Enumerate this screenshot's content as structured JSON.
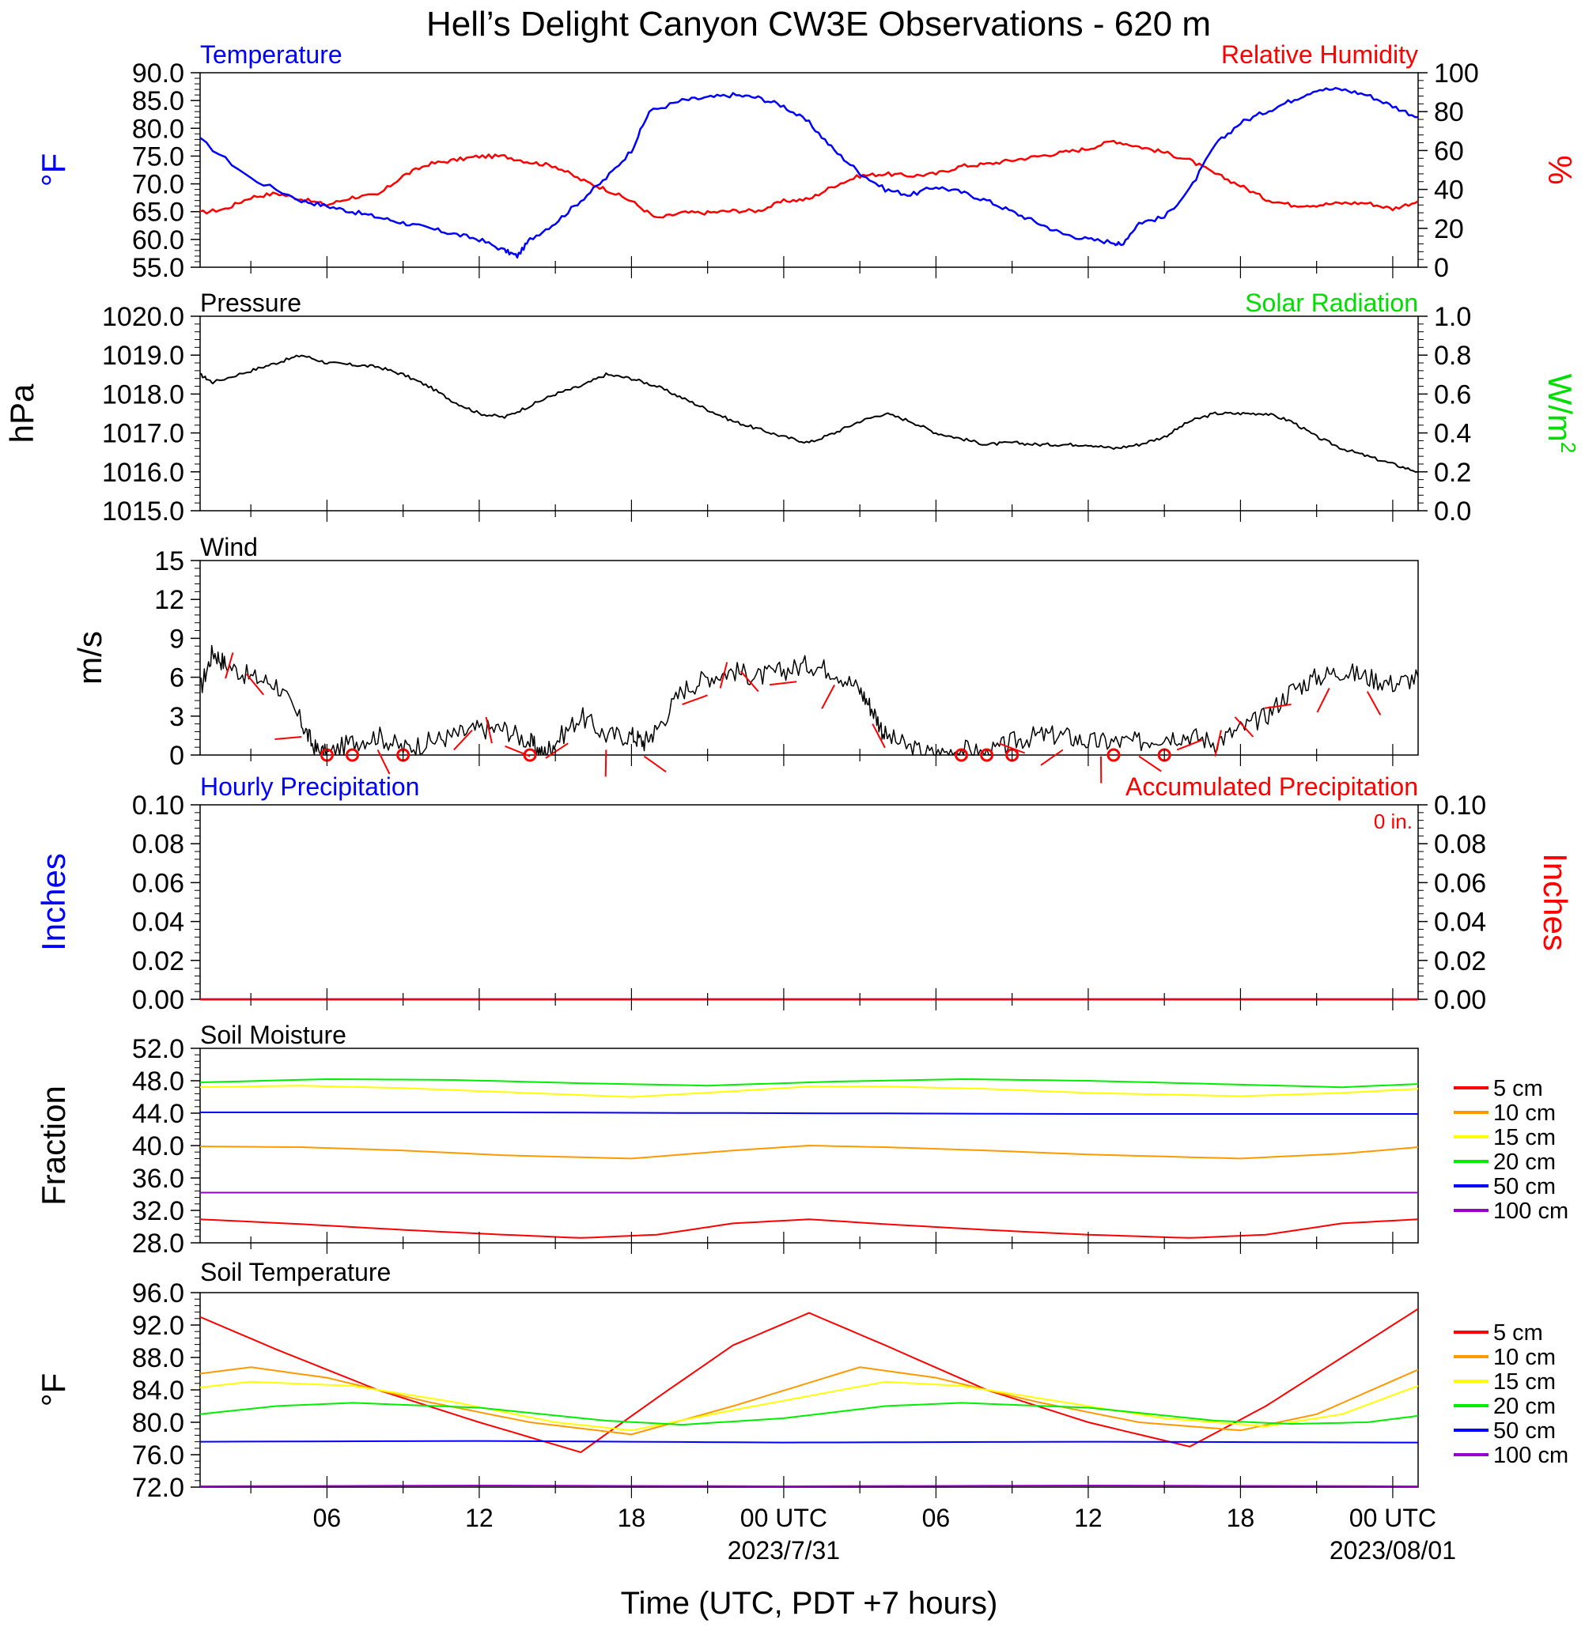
{
  "title": "Hell’s Delight Canyon CW3E Observations - 620 m",
  "xaxis": {
    "ticks": [
      {
        "hour": 6,
        "label": "06"
      },
      {
        "hour": 12,
        "label": "12"
      },
      {
        "hour": 18,
        "label": "18"
      },
      {
        "hour": 24,
        "label": "00 UTC"
      },
      {
        "hour": 30,
        "label": "06"
      },
      {
        "hour": 36,
        "label": "12"
      },
      {
        "hour": 42,
        "label": "18"
      },
      {
        "hour": 48,
        "label": "00 UTC"
      }
    ],
    "dates": [
      {
        "hour": 24,
        "label": "2023/7/31"
      },
      {
        "hour": 48,
        "label": "2023/08/01"
      }
    ],
    "title": "Time (UTC, PDT +7 hours)"
  },
  "colors": {
    "temperature": "#0000ff",
    "humidity": "#ff0000",
    "pressure": "#000000",
    "solar": "#00dd00",
    "5cm": "#ff0000",
    "10cm": "#ff9900",
    "15cm": "#ffff00",
    "20cm": "#00ee00",
    "50cm": "#0000ff",
    "100cm": "#9900cc"
  },
  "panels": {
    "temperature": {
      "left_label": "Temperature",
      "right_label": "Relative Humidity",
      "left_unit": "°F",
      "right_unit": "%",
      "left_ticks": [
        "90.0",
        "85.0",
        "80.0",
        "75.0",
        "70.0",
        "65.0",
        "60.0",
        "55.0"
      ],
      "right_ticks": [
        "100",
        "80",
        "60",
        "40",
        "20",
        "0"
      ]
    },
    "pressure": {
      "left_label": "Pressure",
      "right_label": "Solar Radiation",
      "left_unit": "hPa",
      "right_unit_base": "W/m",
      "right_unit_sup": "2",
      "left_ticks": [
        "1020.0",
        "1019.0",
        "1018.0",
        "1017.0",
        "1016.0",
        "1015.0"
      ],
      "right_ticks": [
        "1.0",
        "0.8",
        "0.6",
        "0.4",
        "0.2",
        "0.0"
      ]
    },
    "wind": {
      "left_label": "Wind",
      "left_unit": "m/s",
      "left_ticks": [
        "15",
        "12",
        "9",
        "6",
        "3",
        "0"
      ]
    },
    "precip": {
      "left_label": "Hourly Precipitation",
      "right_label": "Accumulated Precipitation",
      "accum_text": "0 in.",
      "left_unit": "Inches",
      "right_unit": "Inches",
      "left_ticks": [
        "0.10",
        "0.08",
        "0.06",
        "0.04",
        "0.02",
        "0.00"
      ],
      "right_ticks": [
        "0.10",
        "0.08",
        "0.06",
        "0.04",
        "0.02",
        "0.00"
      ]
    },
    "soil_moisture": {
      "left_label": "Soil Moisture",
      "left_unit": "Fraction",
      "left_ticks": [
        "52.0",
        "48.0",
        "44.0",
        "40.0",
        "36.0",
        "32.0",
        "28.0"
      ],
      "legend": [
        "5 cm",
        "10 cm",
        "15 cm",
        "20 cm",
        "50 cm",
        "100 cm"
      ]
    },
    "soil_temperature": {
      "left_label": "Soil Temperature",
      "left_unit": "°F",
      "left_ticks": [
        "96.0",
        "92.0",
        "88.0",
        "84.0",
        "80.0",
        "76.0",
        "72.0"
      ],
      "legend": [
        "5 cm",
        "10 cm",
        "15 cm",
        "20 cm",
        "50 cm",
        "100 cm"
      ]
    }
  },
  "chart_data": [
    {
      "type": "line",
      "title": "Temperature / Relative Humidity",
      "x_unit": "hours since 2023-07-30 00 UTC",
      "ylim_left": [
        55,
        90
      ],
      "ylim_right": [
        0,
        100
      ],
      "series": [
        {
          "name": "Temperature",
          "axis": "left",
          "x": [
            1,
            3,
            5,
            6,
            7,
            8,
            9,
            10,
            11,
            12,
            13,
            13.5,
            14,
            15,
            16,
            17,
            18,
            18.7,
            20,
            21,
            22,
            23,
            24,
            25,
            26,
            27,
            28,
            29,
            30,
            31,
            32,
            33,
            34,
            35,
            36,
            37,
            37.3,
            38,
            39,
            40,
            41,
            42,
            43,
            44,
            45,
            46,
            47,
            48,
            49
          ],
          "y": [
            78,
            71,
            67,
            66,
            65,
            64,
            63,
            62,
            61,
            60,
            58,
            57,
            60,
            63,
            67,
            71,
            76,
            83,
            85,
            85.5,
            86,
            85.5,
            84,
            81,
            76,
            72,
            69,
            68,
            69.5,
            68.5,
            67,
            65,
            63,
            61,
            60,
            59.5,
            59,
            63,
            64,
            69,
            77,
            81,
            83,
            85,
            87,
            87,
            86,
            84,
            82
          ]
        },
        {
          "name": "Relative Humidity",
          "axis": "right",
          "x": [
            1,
            2,
            3,
            4,
            5,
            6,
            7,
            8,
            9,
            10,
            11,
            12,
            13,
            14,
            15,
            16,
            17,
            18,
            19,
            20,
            21,
            22,
            23,
            24,
            25,
            26,
            27,
            28,
            29,
            30,
            31,
            32,
            33,
            34,
            35,
            36,
            37,
            38,
            39,
            40,
            41,
            42,
            43,
            44,
            45,
            46,
            47,
            48,
            49
          ],
          "y": [
            28,
            30,
            36,
            38,
            35,
            32,
            36,
            37,
            47,
            53,
            55,
            57,
            57,
            54,
            52,
            45,
            40,
            34,
            25,
            28,
            28,
            29,
            29,
            34,
            35,
            42,
            47,
            48,
            47,
            48,
            52,
            53,
            55,
            57,
            59,
            61,
            65,
            62,
            59,
            55,
            48,
            42,
            35,
            32,
            32,
            33,
            33,
            30,
            34
          ]
        }
      ]
    },
    {
      "type": "line",
      "title": "Pressure / Solar Radiation",
      "ylim_left": [
        1015,
        1020
      ],
      "ylim_right": [
        0,
        1
      ],
      "series": [
        {
          "name": "Pressure",
          "axis": "left",
          "x": [
            1,
            1.5,
            3,
            4,
            5,
            6,
            7,
            8,
            9,
            10,
            11,
            12,
            13,
            14,
            15,
            16,
            17,
            18,
            19,
            20,
            21,
            22,
            23,
            24,
            25,
            26,
            27,
            28,
            29,
            30,
            31,
            32,
            33,
            34,
            35,
            36,
            37,
            38,
            39,
            40,
            41,
            42,
            43,
            44,
            45,
            46,
            47,
            48,
            49
          ],
          "y": [
            1018.5,
            1018.3,
            1018.6,
            1018.8,
            1019.0,
            1018.8,
            1018.75,
            1018.7,
            1018.5,
            1018.2,
            1017.8,
            1017.5,
            1017.4,
            1017.7,
            1018.0,
            1018.2,
            1018.5,
            1018.4,
            1018.2,
            1017.9,
            1017.6,
            1017.3,
            1017.1,
            1016.9,
            1016.75,
            1017.0,
            1017.3,
            1017.5,
            1017.3,
            1017.0,
            1016.85,
            1016.7,
            1016.75,
            1016.7,
            1016.7,
            1016.7,
            1016.6,
            1016.7,
            1016.9,
            1017.3,
            1017.5,
            1017.5,
            1017.5,
            1017.3,
            1016.9,
            1016.6,
            1016.4,
            1016.2,
            1016.0
          ]
        }
      ]
    },
    {
      "type": "line",
      "title": "Wind",
      "ylim": [
        0,
        15
      ],
      "series": [
        {
          "name": "Wind speed",
          "x": [
            1,
            1.5,
            2,
            3,
            4,
            5,
            5.5,
            6,
            7,
            8,
            9,
            10,
            11,
            12,
            13,
            14,
            14.5,
            15,
            16,
            17,
            18,
            18.5,
            19,
            20,
            21,
            22,
            23,
            24,
            25,
            26,
            27,
            27.5,
            28,
            29,
            30,
            31,
            32,
            33,
            34,
            35,
            36,
            37,
            38,
            39,
            40,
            41,
            42,
            43,
            44,
            45,
            46,
            47,
            48,
            49
          ],
          "y": [
            5,
            8,
            7,
            6,
            5.5,
            2.5,
            0.5,
            0,
            1,
            1.5,
            0.5,
            1,
            1.5,
            2,
            2,
            1,
            0,
            1,
            3,
            1.5,
            1.5,
            1,
            2,
            5,
            6,
            6.5,
            6,
            6.5,
            7,
            6.5,
            5,
            3.5,
            1.5,
            0.5,
            0,
            0.5,
            0,
            1,
            1.5,
            1.5,
            1,
            1,
            1,
            1.5,
            1.5,
            1,
            2,
            3,
            5,
            6,
            6.5,
            6,
            5.5,
            6
          ]
        },
        {
          "name": "Calm markers",
          "x": [
            6,
            7,
            9,
            14,
            31,
            32,
            33,
            37,
            39
          ],
          "y": [
            0,
            0,
            0,
            0,
            0,
            0,
            0,
            0,
            0
          ]
        }
      ]
    },
    {
      "type": "line",
      "title": "Hourly / Accumulated Precipitation",
      "ylim": [
        0,
        0.1
      ],
      "series": [
        {
          "name": "Hourly Precipitation",
          "x": [
            1,
            49
          ],
          "y": [
            0,
            0
          ]
        },
        {
          "name": "Accumulated Precipitation",
          "x": [
            1,
            49
          ],
          "y": [
            0,
            0
          ]
        }
      ]
    },
    {
      "type": "line",
      "title": "Soil Moisture",
      "ylim": [
        28,
        52
      ],
      "series": [
        {
          "name": "5 cm",
          "x": [
            1,
            5,
            9,
            13,
            16,
            19,
            22,
            25,
            28,
            32,
            36,
            40,
            43,
            46,
            49
          ],
          "y": [
            30.9,
            30.3,
            29.6,
            29.0,
            28.6,
            29.0,
            30.4,
            30.9,
            30.3,
            29.6,
            29.0,
            28.6,
            29.0,
            30.4,
            30.9
          ]
        },
        {
          "name": "10 cm",
          "x": [
            1,
            5,
            9,
            13,
            18,
            22,
            25,
            28,
            32,
            36,
            42,
            46,
            49
          ],
          "y": [
            39.9,
            39.8,
            39.4,
            38.8,
            38.4,
            39.4,
            40.0,
            39.8,
            39.4,
            38.9,
            38.4,
            39.0,
            39.8
          ]
        },
        {
          "name": "15 cm",
          "x": [
            1,
            5,
            9,
            13,
            18,
            22,
            25,
            28,
            32,
            36,
            42,
            46,
            49
          ],
          "y": [
            47.2,
            47.4,
            47.1,
            46.6,
            46.0,
            46.7,
            47.3,
            47.3,
            47.0,
            46.5,
            46.1,
            46.5,
            47.0
          ]
        },
        {
          "name": "20 cm",
          "x": [
            1,
            6,
            11,
            16,
            21,
            26,
            31,
            36,
            41,
            46,
            49
          ],
          "y": [
            47.8,
            48.2,
            48.1,
            47.7,
            47.4,
            47.9,
            48.2,
            48.0,
            47.6,
            47.2,
            47.6
          ]
        },
        {
          "name": "50 cm",
          "x": [
            1,
            12,
            24,
            36,
            49
          ],
          "y": [
            44.1,
            44.1,
            44.0,
            43.9,
            43.9
          ]
        },
        {
          "name": "100 cm",
          "x": [
            1,
            12,
            24,
            36,
            49
          ],
          "y": [
            34.2,
            34.2,
            34.2,
            34.2,
            34.2
          ]
        }
      ]
    },
    {
      "type": "line",
      "title": "Soil Temperature",
      "ylim": [
        72,
        96
      ],
      "series": [
        {
          "name": "5 cm",
          "x": [
            1,
            4,
            8,
            12,
            16,
            19,
            22,
            25,
            28,
            32,
            36,
            40,
            43,
            46,
            49
          ],
          "y": [
            93,
            89,
            84,
            80,
            76.3,
            83,
            89.5,
            93.5,
            89.5,
            84,
            80,
            77,
            82,
            88,
            94
          ]
        },
        {
          "name": "10 cm",
          "x": [
            1,
            3,
            6,
            10,
            14,
            18,
            22,
            27,
            30,
            34,
            38,
            42,
            45,
            49
          ],
          "y": [
            86,
            86.8,
            85.5,
            82.5,
            80,
            78.5,
            82,
            86.8,
            85.5,
            82.5,
            80,
            79,
            81,
            86.5
          ]
        },
        {
          "name": "15 cm",
          "x": [
            1,
            3,
            7,
            11,
            15,
            18,
            22,
            28,
            31,
            35,
            39,
            43,
            46,
            49
          ],
          "y": [
            84.3,
            85,
            84.5,
            82.5,
            80,
            79,
            81.5,
            85,
            84.5,
            82.5,
            80.5,
            79.5,
            81,
            84.5
          ]
        },
        {
          "name": "20 cm",
          "x": [
            1,
            4,
            7,
            12,
            17,
            20,
            24,
            28,
            31,
            36,
            41,
            44,
            47,
            49
          ],
          "y": [
            81,
            82,
            82.4,
            81.8,
            80.2,
            79.7,
            80.5,
            82,
            82.4,
            81.8,
            80.2,
            79.8,
            80,
            80.8
          ]
        },
        {
          "name": "50 cm",
          "x": [
            1,
            12,
            24,
            36,
            49
          ],
          "y": [
            77.6,
            77.7,
            77.5,
            77.6,
            77.5
          ]
        },
        {
          "name": "100 cm",
          "x": [
            1,
            12,
            24,
            36,
            49
          ],
          "y": [
            72.1,
            72.2,
            72.1,
            72.2,
            72.1
          ]
        }
      ]
    }
  ]
}
